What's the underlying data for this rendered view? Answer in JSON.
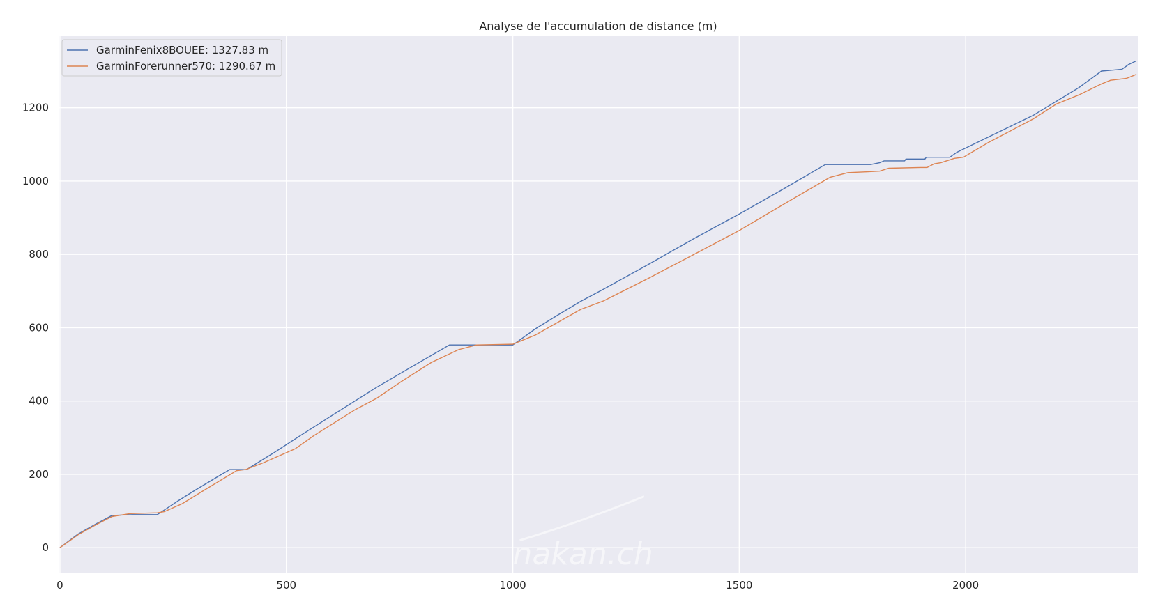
{
  "chart_data": {
    "type": "line",
    "title": "Analyse de l'accumulation de distance (m)",
    "xlabel": "",
    "ylabel": "",
    "xlim": [
      -3,
      2380
    ],
    "ylim": [
      -68,
      1395
    ],
    "x_ticks": [
      0,
      500,
      1000,
      1500,
      2000
    ],
    "y_ticks": [
      0,
      200,
      400,
      600,
      800,
      1000,
      1200
    ],
    "grid": true,
    "legend_position": "top-left",
    "watermark": "nakan.ch",
    "series": [
      {
        "name": "GarminFenix8BOUEE: 1327.83 m",
        "color": "#4c72b0",
        "points": [
          [
            0,
            0
          ],
          [
            40,
            37
          ],
          [
            80,
            65
          ],
          [
            115,
            88
          ],
          [
            160,
            90
          ],
          [
            215,
            90
          ],
          [
            260,
            127
          ],
          [
            300,
            158
          ],
          [
            350,
            195
          ],
          [
            375,
            213
          ],
          [
            412,
            213
          ],
          [
            470,
            257
          ],
          [
            530,
            305
          ],
          [
            600,
            360
          ],
          [
            700,
            438
          ],
          [
            800,
            510
          ],
          [
            860,
            553
          ],
          [
            1000,
            553
          ],
          [
            1050,
            597
          ],
          [
            1100,
            635
          ],
          [
            1150,
            672
          ],
          [
            1200,
            705
          ],
          [
            1300,
            773
          ],
          [
            1400,
            843
          ],
          [
            1500,
            910
          ],
          [
            1600,
            980
          ],
          [
            1690,
            1045
          ],
          [
            1790,
            1045
          ],
          [
            1810,
            1050
          ],
          [
            1820,
            1055
          ],
          [
            1865,
            1055
          ],
          [
            1868,
            1060
          ],
          [
            1910,
            1060
          ],
          [
            1913,
            1065
          ],
          [
            1965,
            1065
          ],
          [
            1980,
            1078
          ],
          [
            2050,
            1120
          ],
          [
            2150,
            1180
          ],
          [
            2250,
            1255
          ],
          [
            2300,
            1300
          ],
          [
            2320,
            1302
          ],
          [
            2345,
            1305
          ],
          [
            2360,
            1318
          ],
          [
            2377,
            1328
          ]
        ]
      },
      {
        "name": "GarminForerunner570: 1290.67 m",
        "color": "#dd8452",
        "points": [
          [
            0,
            0
          ],
          [
            40,
            35
          ],
          [
            80,
            63
          ],
          [
            115,
            85
          ],
          [
            155,
            93
          ],
          [
            215,
            95
          ],
          [
            230,
            98
          ],
          [
            270,
            120
          ],
          [
            320,
            158
          ],
          [
            390,
            210
          ],
          [
            410,
            213
          ],
          [
            450,
            232
          ],
          [
            520,
            270
          ],
          [
            560,
            305
          ],
          [
            650,
            375
          ],
          [
            700,
            408
          ],
          [
            750,
            450
          ],
          [
            820,
            505
          ],
          [
            880,
            540
          ],
          [
            920,
            553
          ],
          [
            1000,
            555
          ],
          [
            1050,
            580
          ],
          [
            1150,
            650
          ],
          [
            1200,
            673
          ],
          [
            1300,
            735
          ],
          [
            1400,
            800
          ],
          [
            1500,
            865
          ],
          [
            1600,
            938
          ],
          [
            1700,
            1010
          ],
          [
            1740,
            1023
          ],
          [
            1780,
            1025
          ],
          [
            1810,
            1027
          ],
          [
            1830,
            1035
          ],
          [
            1900,
            1037
          ],
          [
            1915,
            1037
          ],
          [
            1930,
            1047
          ],
          [
            1945,
            1050
          ],
          [
            1975,
            1062
          ],
          [
            1995,
            1065
          ],
          [
            2050,
            1105
          ],
          [
            2150,
            1170
          ],
          [
            2200,
            1210
          ],
          [
            2250,
            1235
          ],
          [
            2300,
            1265
          ],
          [
            2320,
            1275
          ],
          [
            2355,
            1280
          ],
          [
            2377,
            1291
          ]
        ]
      }
    ]
  }
}
